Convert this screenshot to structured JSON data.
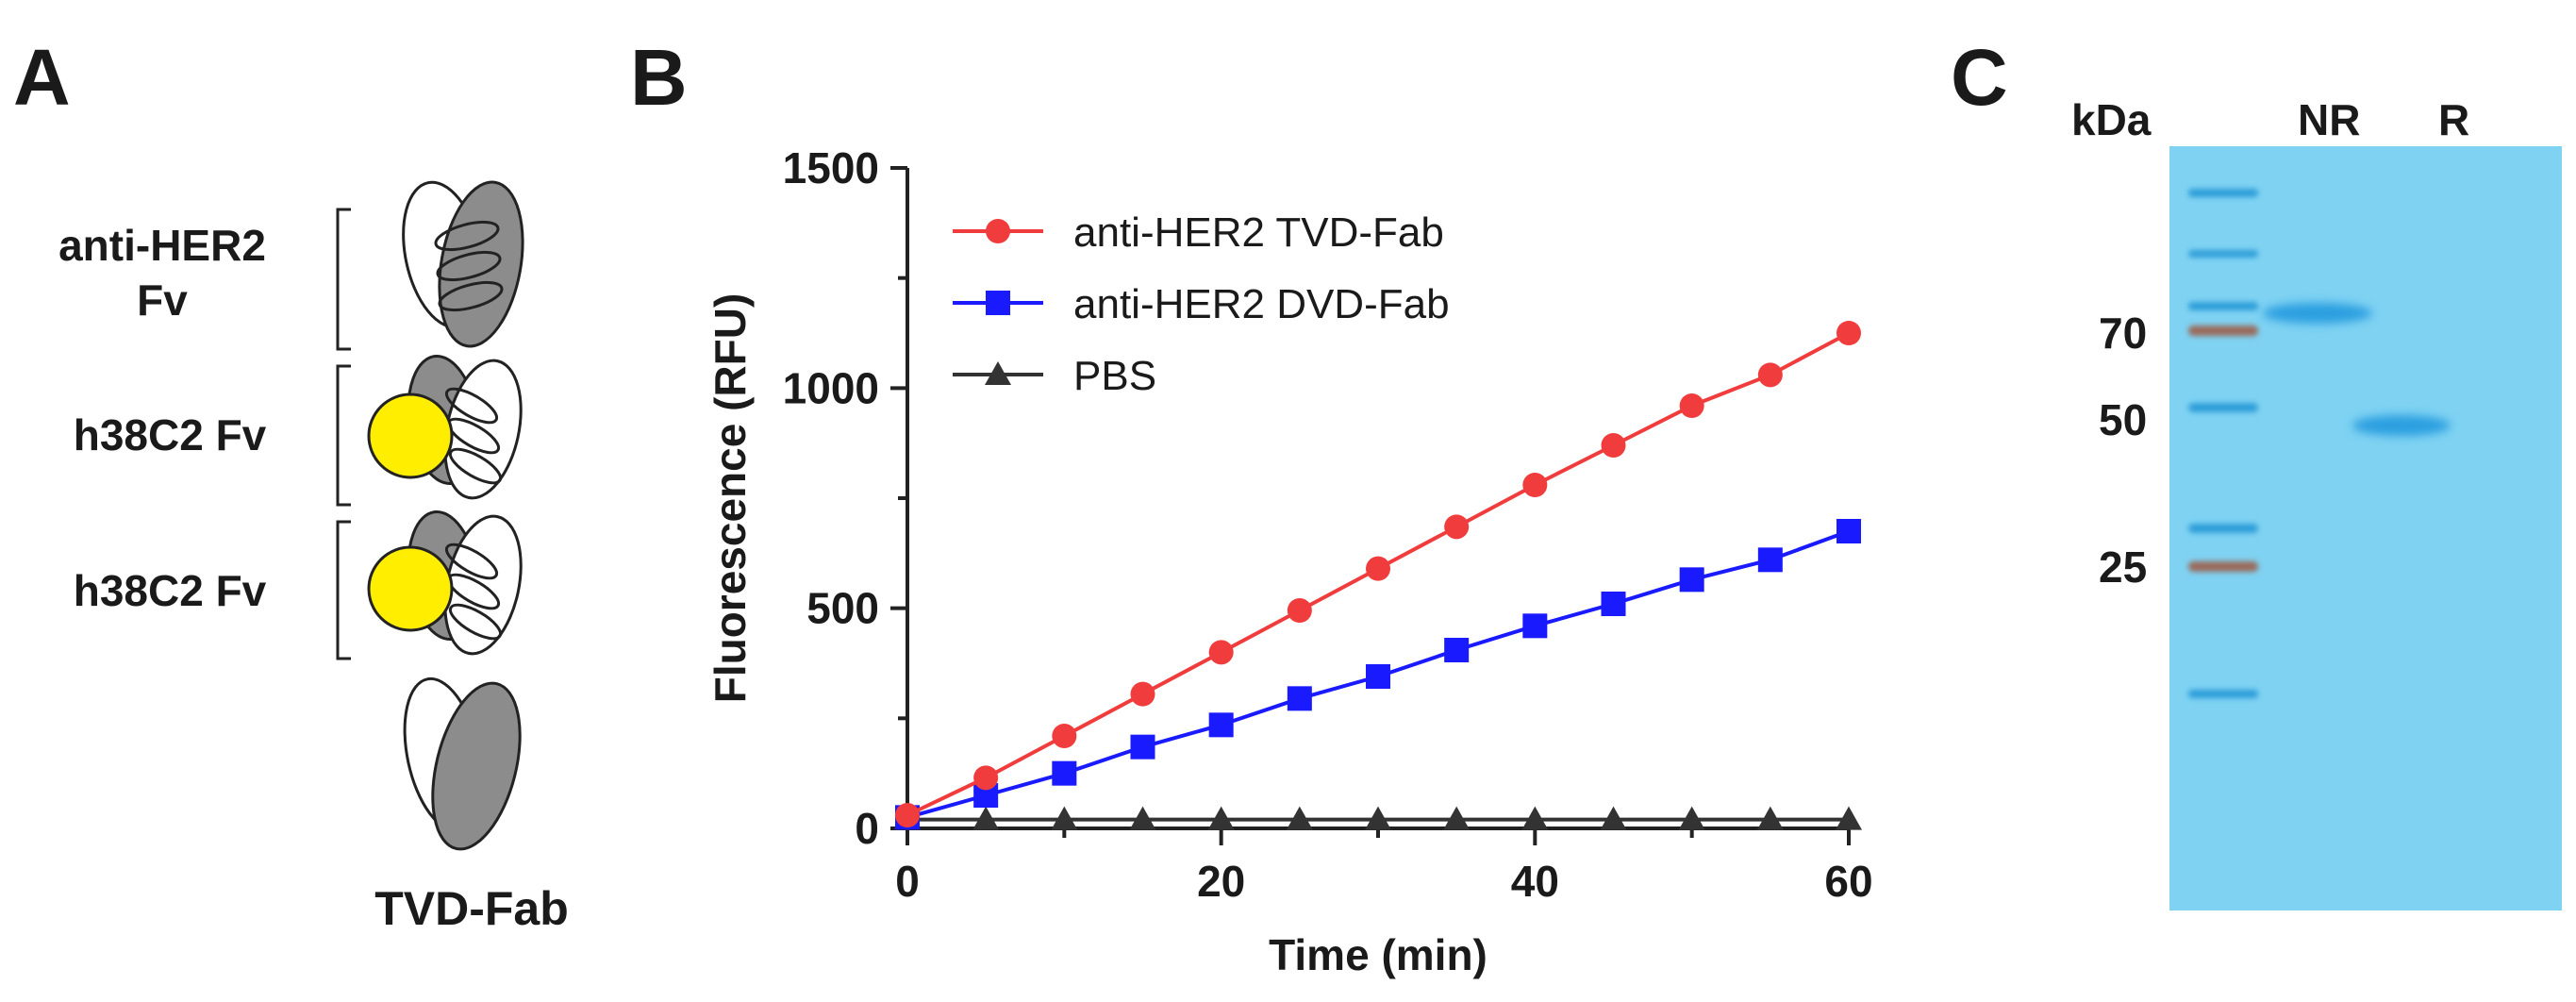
{
  "panels": {
    "a": "A",
    "b": "B",
    "c": "C"
  },
  "panel_a": {
    "domain_labels": {
      "anti_her2_line1": "anti-HER2",
      "anti_her2_line2": "Fv",
      "h38c2_top": "h38C2 Fv",
      "h38c2_bottom": "h38C2 Fv"
    },
    "caption": "TVD-Fab",
    "colors": {
      "grey_domain": "#8c8c8c",
      "hapten": "#ffee00"
    }
  },
  "chart_data": {
    "type": "line",
    "xlabel": "Time (min)",
    "ylabel": "Fluorescence (RFU)",
    "xlim": [
      0,
      60
    ],
    "ylim": [
      0,
      1500
    ],
    "xticks": [
      0,
      20,
      40,
      60
    ],
    "yticks": [
      0,
      500,
      1000,
      1500
    ],
    "legend_position": "top-left",
    "series": [
      {
        "name": "anti-HER2 TVD-Fab",
        "color": "#f03c3c",
        "marker": "circle",
        "x": [
          0,
          5,
          10,
          15,
          20,
          25,
          30,
          35,
          40,
          45,
          50,
          55,
          60
        ],
        "y": [
          30,
          115,
          210,
          305,
          400,
          495,
          590,
          685,
          780,
          870,
          960,
          1030,
          1125
        ]
      },
      {
        "name": "anti-HER2 DVD-Fab",
        "color": "#1a1aff",
        "marker": "square",
        "x": [
          0,
          5,
          10,
          15,
          20,
          25,
          30,
          35,
          40,
          45,
          50,
          55,
          60
        ],
        "y": [
          25,
          75,
          125,
          185,
          235,
          295,
          345,
          405,
          460,
          510,
          565,
          610,
          675
        ]
      },
      {
        "name": "PBS",
        "color": "#333333",
        "marker": "triangle",
        "x": [
          0,
          5,
          10,
          15,
          20,
          25,
          30,
          35,
          40,
          45,
          50,
          55,
          60
        ],
        "y": [
          20,
          20,
          20,
          20,
          20,
          20,
          20,
          20,
          20,
          20,
          20,
          20,
          20
        ]
      }
    ]
  },
  "gel": {
    "unit_label": "kDa",
    "lanes": [
      "NR",
      "R"
    ],
    "markers": [
      "70",
      "50",
      "25"
    ],
    "colors": {
      "background": "#7fd2f2",
      "ladder": "#2f9ed9",
      "brown": "#9a6a5a",
      "sample": "#2c9fe0"
    }
  }
}
